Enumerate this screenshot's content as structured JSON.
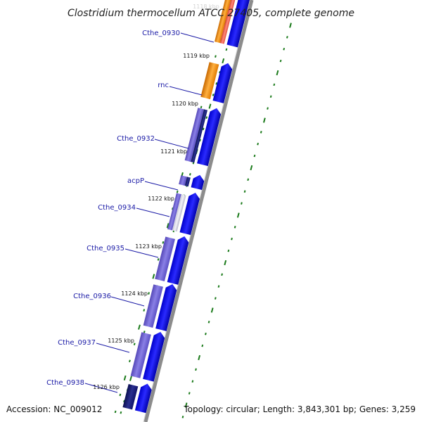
{
  "title": "Clostridium thermocellum ATCC 27405, complete genome",
  "footer": {
    "accession": "Accession: NC_009012",
    "stats": "Topology: circular; Length: 3,843,301 bp; Genes: 3,259"
  },
  "colors": {
    "gene_blue": "#1010ee",
    "rna_orange": "#f59a1a",
    "rna_red": "#f26a5a",
    "cds_purple": "#6a5ccc",
    "cds_navy": "#141a7a",
    "label_blue": "#1a1aa6",
    "tick_green": "#1a7a1a",
    "backbone_gray": "#888888"
  },
  "genes": [
    {
      "name": "Cthe_0930"
    },
    {
      "name": "rnc"
    },
    {
      "name": "Cthe_0932"
    },
    {
      "name": "acpP"
    },
    {
      "name": "Cthe_0934"
    },
    {
      "name": "Cthe_0935"
    },
    {
      "name": "Cthe_0936"
    },
    {
      "name": "Cthe_0937"
    },
    {
      "name": "Cthe_0938"
    }
  ],
  "positions": [
    {
      "label": "1118 kbp"
    },
    {
      "label": "1119 kbp"
    },
    {
      "label": "1120 kbp"
    },
    {
      "label": "1121 kbp"
    },
    {
      "label": "1122 kbp"
    },
    {
      "label": "1123 kbp"
    },
    {
      "label": "1124 kbp"
    },
    {
      "label": "1125 kbp"
    },
    {
      "label": "1126 kbp"
    }
  ]
}
